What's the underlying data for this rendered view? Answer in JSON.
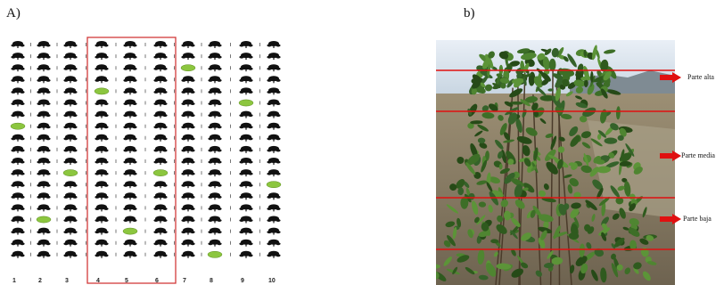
{
  "panel_a": {
    "label": "A)",
    "columns": [
      "1",
      "2",
      "3",
      "4",
      "5",
      "6",
      "7",
      "8",
      "9",
      "10"
    ],
    "rows": 19,
    "highlighted_columns": [
      4,
      5,
      6
    ],
    "sampled_plants": [
      {
        "col": 1,
        "row": 8
      },
      {
        "col": 2,
        "row": 16
      },
      {
        "col": 3,
        "row": 12
      },
      {
        "col": 4,
        "row": 5
      },
      {
        "col": 5,
        "row": 17
      },
      {
        "col": 6,
        "row": 12
      },
      {
        "col": 7,
        "row": 3
      },
      {
        "col": 8,
        "row": 19
      },
      {
        "col": 9,
        "row": 6
      },
      {
        "col": 10,
        "row": 13
      }
    ],
    "colors": {
      "plant": "#111111",
      "sampled": "#8cc63f",
      "box": "#d23a3a"
    }
  },
  "panel_b": {
    "label": "b)",
    "strata": [
      {
        "label": "Parte alta"
      },
      {
        "label": "Parte media"
      },
      {
        "label": "Parte baja"
      }
    ],
    "colors": {
      "line": "#e01010",
      "arrow": "#e01010"
    }
  }
}
